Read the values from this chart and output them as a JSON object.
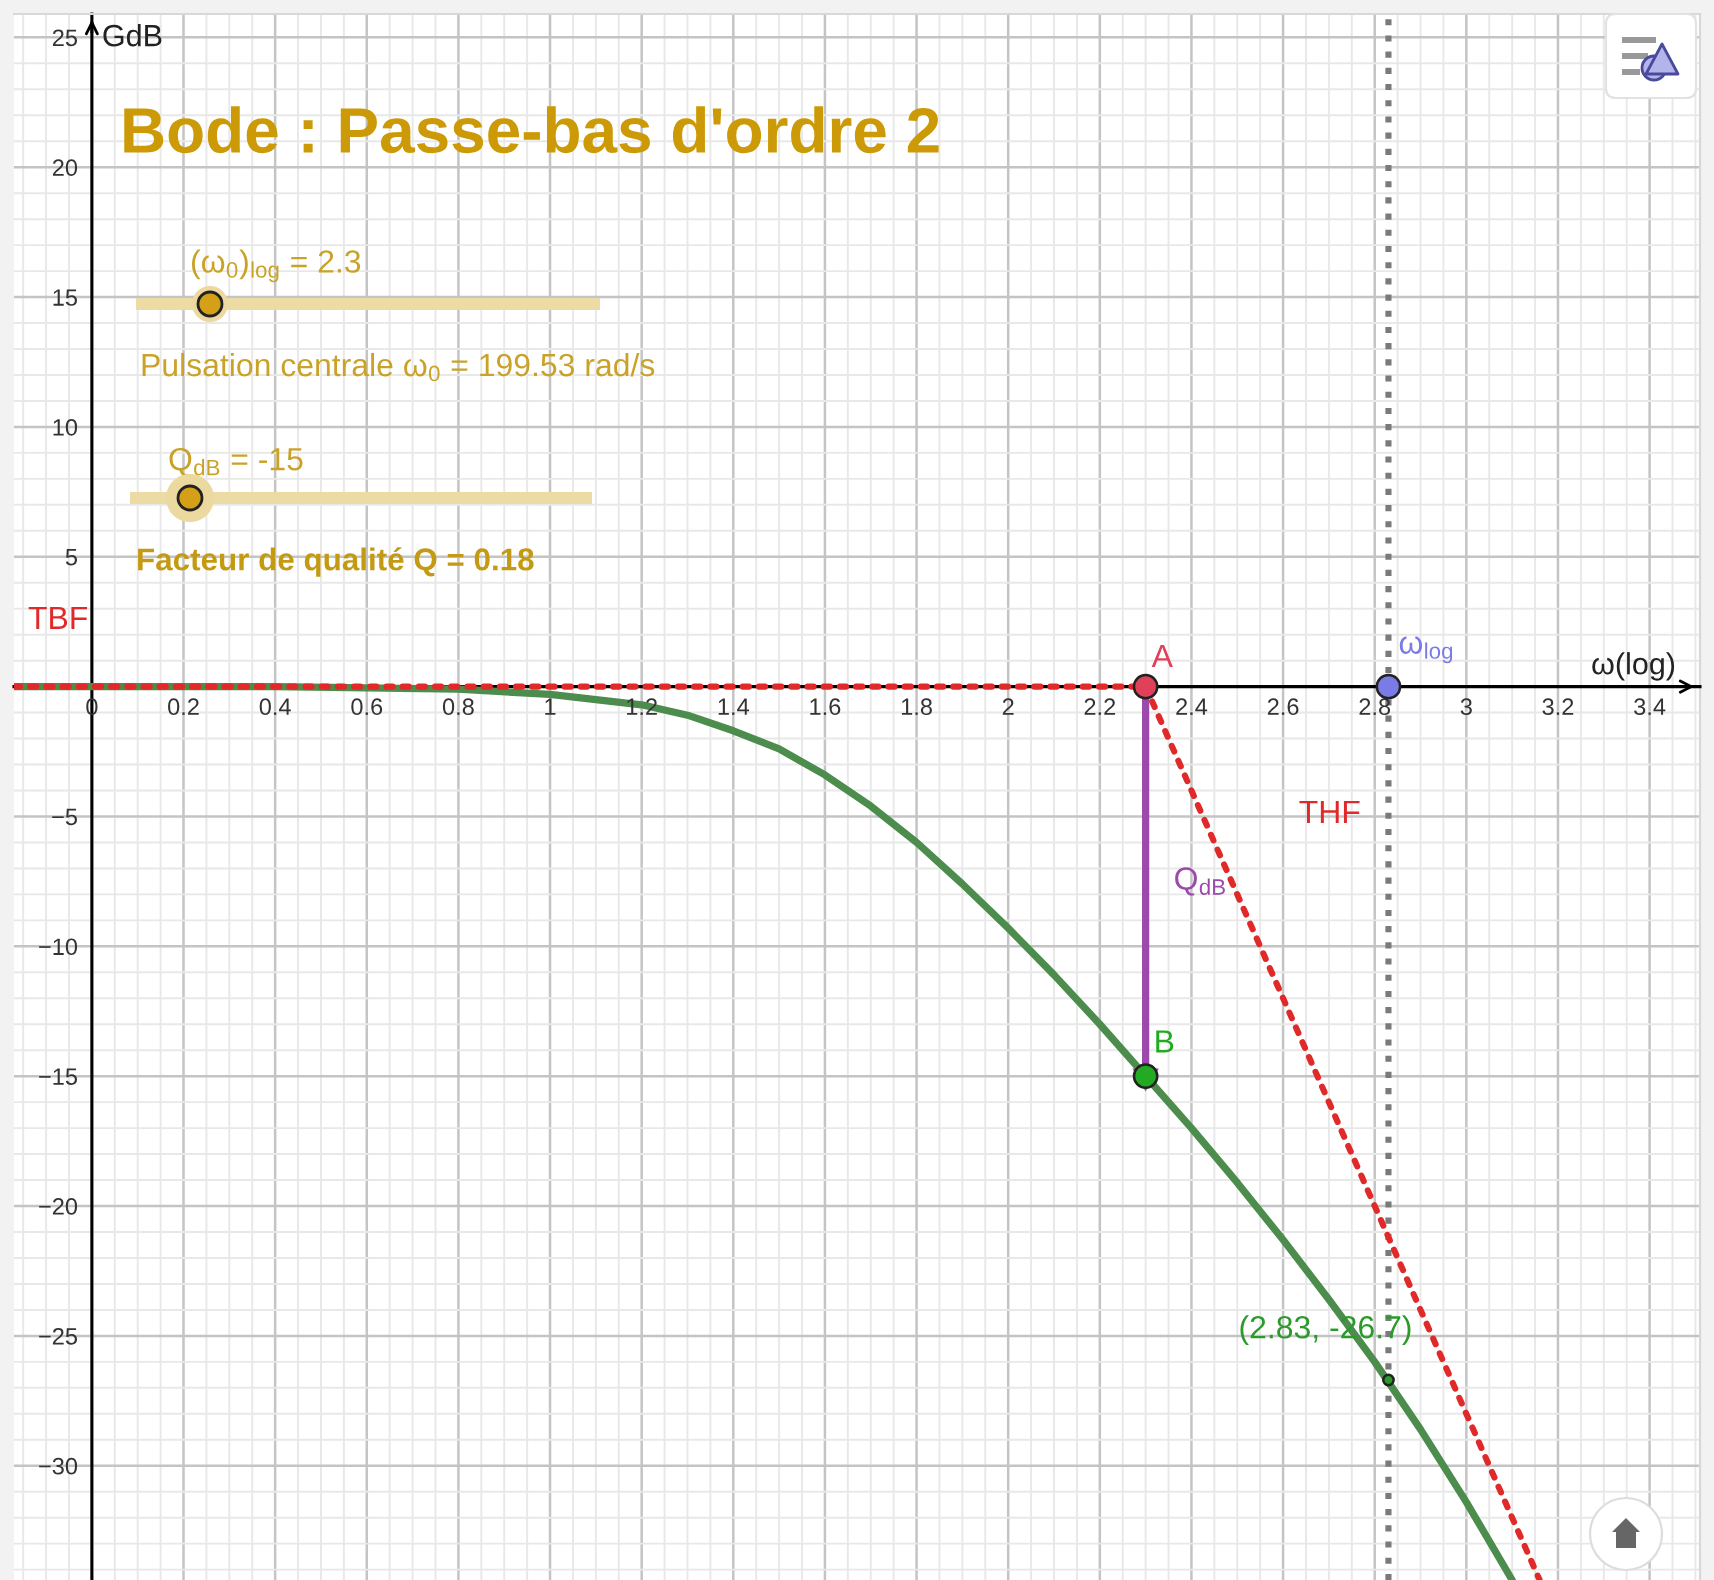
{
  "chart_data": {
    "type": "line",
    "title": "Bode : Passe-bas d'ordre 2",
    "xlabel": "ω(log)",
    "ylabel": "GdB",
    "xlim": [
      -0.17,
      3.51
    ],
    "ylim": [
      -34.4,
      25.9
    ],
    "xticks": [
      0,
      0.2,
      0.4,
      0.6,
      0.8,
      1,
      1.2,
      1.4,
      1.6,
      1.8,
      2,
      2.2,
      2.4,
      2.6,
      2.8,
      3,
      3.2,
      3.4
    ],
    "yticks": [
      {
        "value": -30,
        "label": "−30"
      },
      {
        "value": -25,
        "label": "−25"
      },
      {
        "value": -20,
        "label": "−20"
      },
      {
        "value": -15,
        "label": "−15"
      },
      {
        "value": -10,
        "label": "−10"
      },
      {
        "value": -5,
        "label": "−5"
      },
      5,
      10,
      15,
      20,
      25
    ],
    "grid": true,
    "series": [
      {
        "color": "#4c8c4c",
        "x": [
          -0.17,
          0.4,
          0.8,
          1.0,
          1.1,
          1.2,
          1.3,
          1.4,
          1.5,
          1.6,
          1.7,
          1.8,
          1.9,
          2.0,
          2.1,
          2.2,
          2.3,
          2.4,
          2.5,
          2.6,
          2.7,
          2.8,
          2.9,
          3.0,
          3.1
        ],
        "values": [
          0.0,
          0.0,
          -0.1,
          -0.3,
          -0.5,
          -0.7,
          -1.1,
          -1.7,
          -2.4,
          -3.4,
          -4.6,
          -6.0,
          -7.6,
          -9.3,
          -11.1,
          -13.0,
          -15.0,
          -17.0,
          -19.1,
          -21.3,
          -23.6,
          -26.0,
          -28.6,
          -31.4,
          -34.4
        ]
      },
      {
        "name": "TBF",
        "type": "line",
        "color": "#e02a2a",
        "line_style": "dotted",
        "x": [
          -0.17,
          2.3
        ],
        "values": [
          0,
          0
        ]
      },
      {
        "name": "THF",
        "type": "line",
        "color": "#e02a2a",
        "line_style": "dotted",
        "x": [
          2.3,
          3.16
        ],
        "values": [
          0,
          -34.4
        ]
      },
      {
        "name": "Q$_{dB}$",
        "type": "line",
        "color": "#9b4aab",
        "marker": "triangle",
        "x": [
          2.3,
          2.3
        ],
        "values": [
          0,
          -15
        ]
      },
      {
        "name": "A",
        "type": "scatter",
        "color": "#e0405a",
        "marker": "circle",
        "x": [
          2.3
        ],
        "values": [
          0
        ]
      },
      {
        "name": "B",
        "type": "scatter",
        "color": "#22aa22",
        "marker": "circle",
        "x": [
          2.3
        ],
        "values": [
          -15
        ]
      },
      {
        "name": "ω$_{log}$",
        "type": "scatter",
        "color": "#7b7be8",
        "marker": "circle",
        "x": [
          2.83
        ],
        "values": [
          0
        ]
      },
      {
        "type": "scatter",
        "color": "#2a9a2a",
        "marker": "circle",
        "x": [
          2.83
        ],
        "values": [
          -26.7
        ],
        "value_labels": [
          "(2.83, -26.7)"
        ]
      }
    ],
    "ref_lines": [
      {
        "axis": "x",
        "value": 2.83,
        "color": "#7a7a7a",
        "line_style": "dotted"
      }
    ],
    "annotations": [
      "(ω$_{0}$)$_{log}$ = 2.3",
      "Pulsation centrale ω$_{0}$ = 199.53 rad/s",
      "Q$_{dB}$ = -15",
      "Facteur de qualité Q = 0.18"
    ]
  }
}
